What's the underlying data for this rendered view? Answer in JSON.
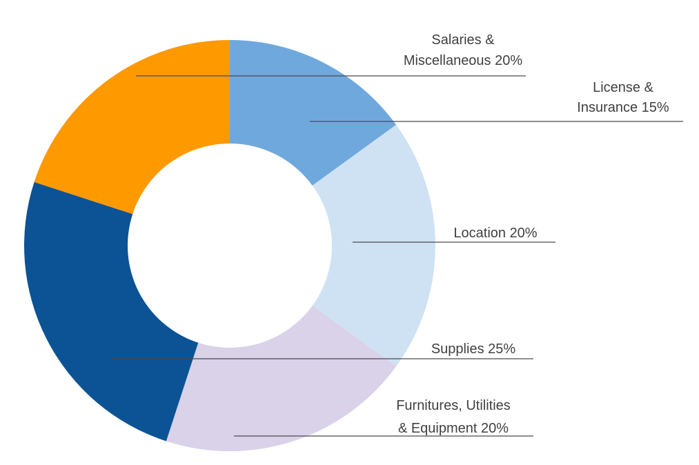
{
  "chart_data": {
    "type": "pie",
    "donut": true,
    "title": "",
    "start_angle_deg": 0,
    "direction": "clockwise",
    "slices": [
      {
        "label_lines": [
          "License &",
          "Insurance 15%"
        ],
        "value": 15,
        "color": "#6fa8dc"
      },
      {
        "label_lines": [
          "Location 20%"
        ],
        "value": 20,
        "color": "#cfe2f3"
      },
      {
        "label_lines": [
          "Furnitures, Utilities",
          "& Equipment 20%"
        ],
        "value": 20,
        "color": "#d9d2e9"
      },
      {
        "label_lines": [
          "Supplies 25%"
        ],
        "value": 25,
        "color": "#0b5394"
      },
      {
        "label_lines": [
          "Salaries &",
          "Miscellaneous 20%"
        ],
        "value": 20,
        "color": "#ff9900"
      }
    ]
  }
}
